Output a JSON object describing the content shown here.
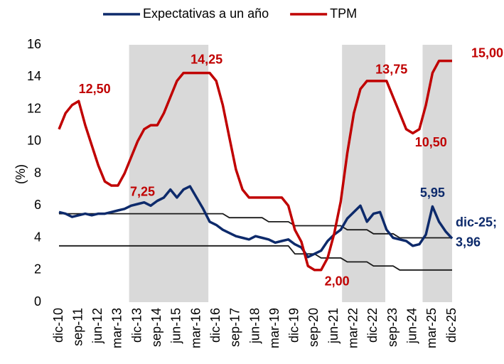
{
  "chart_data": {
    "type": "line",
    "y_label": "(%)",
    "ylim": [
      0,
      16
    ],
    "yticks": [
      0,
      2,
      4,
      6,
      8,
      10,
      12,
      14,
      16
    ],
    "categories": [
      "dic-10",
      null,
      null,
      "sep-11",
      null,
      null,
      "jun-12",
      null,
      null,
      "mar-13",
      null,
      null,
      "dic-13",
      null,
      null,
      "sep-14",
      null,
      null,
      "jun-15",
      null,
      null,
      "mar-16",
      null,
      null,
      "dic-16",
      null,
      null,
      "sep-17",
      null,
      null,
      "jun-18",
      null,
      null,
      "mar-19",
      null,
      null,
      "dic-19",
      null,
      null,
      "sep-20",
      null,
      null,
      "jun-21",
      null,
      null,
      "mar-22",
      null,
      null,
      "dic-22",
      null,
      null,
      "sep-23",
      null,
      null,
      "jun-24",
      null,
      null,
      "mar-25",
      null,
      null,
      "dic-25"
    ],
    "shaded": [
      [
        10.7,
        22.8
      ],
      [
        43.2,
        49.8
      ],
      [
        55.5,
        60
      ]
    ],
    "shade_color": "#d9d9d9",
    "series": [
      {
        "name": "Expectativas a un año",
        "color": "#0d2a6b",
        "legend": true,
        "values": [
          5.6,
          5.5,
          5.3,
          5.4,
          5.5,
          5.4,
          5.5,
          5.5,
          5.6,
          5.7,
          5.8,
          6.0,
          6.1,
          6.2,
          6.0,
          6.3,
          6.5,
          7.0,
          6.5,
          7.0,
          7.2,
          6.5,
          5.8,
          5.0,
          4.8,
          4.5,
          4.3,
          4.1,
          4.0,
          3.9,
          4.1,
          4.0,
          3.9,
          3.7,
          3.8,
          3.9,
          3.6,
          3.4,
          2.8,
          3.0,
          3.2,
          3.8,
          4.2,
          4.5,
          5.2,
          5.6,
          6.0,
          5.0,
          5.5,
          5.6,
          4.5,
          4.0,
          3.9,
          3.8,
          3.5,
          3.6,
          4.2,
          5.95,
          5.0,
          4.4,
          3.96
        ],
        "value_labels": [
          null,
          null,
          null,
          null,
          null,
          null,
          null,
          null,
          null,
          null,
          null,
          null,
          null,
          null,
          null,
          null,
          null,
          null,
          null,
          null,
          null,
          null,
          null,
          null,
          null,
          null,
          null,
          null,
          null,
          null,
          null,
          null,
          null,
          null,
          null,
          null,
          null,
          null,
          null,
          null,
          null,
          null,
          null,
          null,
          null,
          null,
          null,
          null,
          null,
          null,
          null,
          null,
          null,
          null,
          null,
          null,
          null,
          "5,95",
          null,
          null,
          "dic-25;\n3,96"
        ]
      },
      {
        "name": "TPM",
        "color": "#c00000",
        "legend": true,
        "values": [
          10.75,
          11.75,
          12.25,
          12.5,
          11.0,
          9.75,
          8.5,
          7.5,
          7.25,
          7.25,
          8.0,
          9.0,
          10.0,
          10.75,
          11.0,
          11.0,
          11.75,
          12.75,
          13.75,
          14.25,
          14.25,
          14.25,
          14.25,
          14.25,
          13.75,
          12.25,
          10.25,
          8.25,
          7.0,
          6.5,
          6.5,
          6.5,
          6.5,
          6.5,
          6.5,
          6.0,
          4.5,
          3.75,
          2.25,
          2.0,
          2.0,
          2.75,
          4.25,
          6.25,
          9.25,
          11.75,
          13.25,
          13.75,
          13.75,
          13.75,
          13.75,
          12.75,
          11.75,
          10.75,
          10.5,
          10.75,
          12.25,
          14.25,
          15.0,
          15.0,
          15.0
        ],
        "value_labels": [
          null,
          null,
          null,
          "12,50",
          null,
          null,
          null,
          null,
          null,
          "7,25",
          null,
          null,
          null,
          null,
          null,
          null,
          null,
          null,
          null,
          "14,25",
          null,
          null,
          null,
          null,
          null,
          null,
          null,
          null,
          null,
          null,
          null,
          null,
          null,
          null,
          null,
          null,
          null,
          null,
          null,
          null,
          "2,00",
          null,
          null,
          null,
          null,
          null,
          null,
          "13,75",
          null,
          null,
          null,
          null,
          null,
          null,
          "10,50",
          null,
          null,
          null,
          null,
          null,
          "15,00"
        ]
      },
      {
        "color": "#1a1a1a",
        "values": [
          5.5,
          5.5,
          5.5,
          5.5,
          5.5,
          5.5,
          5.5,
          5.5,
          5.5,
          5.5,
          5.5,
          5.5,
          5.5,
          5.5,
          5.5,
          5.5,
          5.5,
          5.5,
          5.5,
          5.5,
          5.5,
          5.5,
          5.5,
          5.5,
          5.5,
          5.5,
          5.25,
          5.25,
          5.25,
          5.25,
          5.25,
          5.25,
          5.0,
          5.0,
          5.0,
          5.0,
          4.75,
          4.75,
          4.75,
          4.75,
          4.75,
          4.75,
          4.75,
          4.75,
          4.5,
          4.5,
          4.5,
          4.5,
          4.25,
          4.25,
          4.25,
          4.25,
          4.0,
          4.0,
          4.0,
          4.0,
          4.0,
          4.0,
          4.0,
          4.0,
          4.0
        ]
      },
      {
        "color": "#1a1a1a",
        "values": [
          3.5,
          3.5,
          3.5,
          3.5,
          3.5,
          3.5,
          3.5,
          3.5,
          3.5,
          3.5,
          3.5,
          3.5,
          3.5,
          3.5,
          3.5,
          3.5,
          3.5,
          3.5,
          3.5,
          3.5,
          3.5,
          3.5,
          3.5,
          3.5,
          3.5,
          3.5,
          3.5,
          3.5,
          3.5,
          3.5,
          3.5,
          3.5,
          3.5,
          3.5,
          3.5,
          3.5,
          3.0,
          3.0,
          3.0,
          3.0,
          2.75,
          2.75,
          2.75,
          2.75,
          2.5,
          2.5,
          2.5,
          2.5,
          2.25,
          2.25,
          2.25,
          2.25,
          2.0,
          2.0,
          2.0,
          2.0,
          2.0,
          2.0,
          2.0,
          2.0,
          2.0
        ]
      }
    ]
  }
}
